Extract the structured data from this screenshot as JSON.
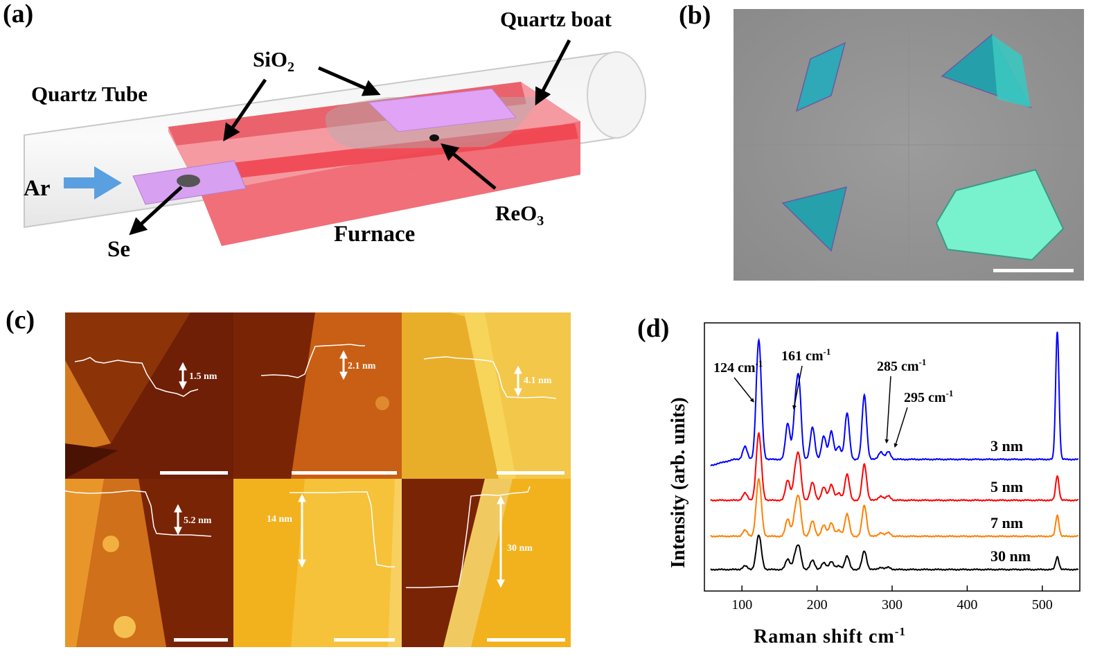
{
  "panels": {
    "a": "(a)",
    "b": "(b)",
    "c": "(c)",
    "d": "(d)"
  },
  "setup": {
    "quartz_tube": "Quartz Tube",
    "quartz_boat": "Quartz boat",
    "sio2_top": "SiO",
    "sio2_sub": "2",
    "ar": "Ar",
    "se": "Se",
    "furnace": "Furnace",
    "reo3": "ReO",
    "reo3_sub": "3"
  },
  "afm": {
    "heights": [
      "1.5 nm",
      "2.1 nm",
      "4.1 nm",
      "5.2 nm",
      "14 nm",
      "30 nm"
    ]
  },
  "chart_data": {
    "type": "line",
    "xlabel": "Raman shift cm",
    "xlabel_sup": "-1",
    "ylabel": "Intensity (arb. units)",
    "xlim": [
      50,
      550
    ],
    "xticks": [
      100,
      200,
      300,
      400,
      500
    ],
    "yticks": "none",
    "annotations": [
      {
        "text": "124 cm",
        "sup": "-1",
        "x": 124
      },
      {
        "text": "161 cm",
        "sup": "-1",
        "x": 161
      },
      {
        "text": "285 cm",
        "sup": "-1",
        "x": 285
      },
      {
        "text": "295 cm",
        "sup": "-1",
        "x": 295
      }
    ],
    "series": [
      {
        "name": "3 nm",
        "color": "#0000ff",
        "offset": 3,
        "scale": 1.0
      },
      {
        "name": "5 nm",
        "color": "#ff0000",
        "offset": 2,
        "scale": 0.35
      },
      {
        "name": "7 nm",
        "color": "#ff8000",
        "offset": 1,
        "scale": 0.3
      },
      {
        "name": "30 nm",
        "color": "#000000",
        "offset": 0,
        "scale": 0.18
      }
    ],
    "peaks": [
      {
        "x": 104,
        "h": 0.1
      },
      {
        "x": 121,
        "h": 0.55
      },
      {
        "x": 124,
        "h": 0.5
      },
      {
        "x": 161,
        "h": 0.28
      },
      {
        "x": 171,
        "h": 0.35
      },
      {
        "x": 176,
        "h": 0.55
      },
      {
        "x": 194,
        "h": 0.25
      },
      {
        "x": 209,
        "h": 0.18
      },
      {
        "x": 219,
        "h": 0.22
      },
      {
        "x": 229,
        "h": 0.1
      },
      {
        "x": 240,
        "h": 0.36
      },
      {
        "x": 263,
        "h": 0.5
      },
      {
        "x": 285,
        "h": 0.06
      },
      {
        "x": 295,
        "h": 0.06
      },
      {
        "x": 520,
        "h": 1.0
      }
    ]
  }
}
